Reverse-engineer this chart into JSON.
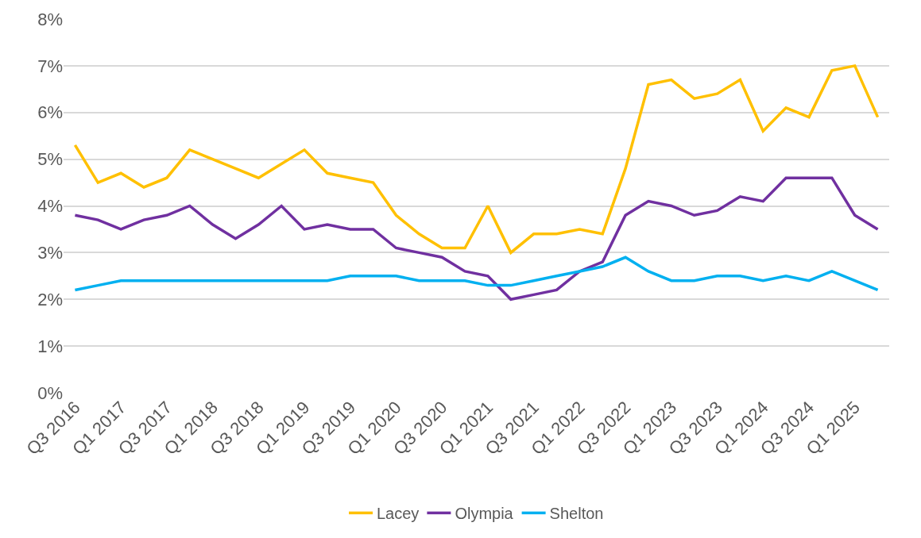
{
  "chart_data": {
    "type": "line",
    "categories": [
      "Q3 2016",
      null,
      "Q1 2017",
      null,
      "Q3 2017",
      null,
      "Q1 2018",
      null,
      "Q3 2018",
      null,
      "Q1 2019",
      null,
      "Q3 2019",
      null,
      "Q1 2020",
      null,
      "Q3 2020",
      null,
      "Q1 2021",
      null,
      "Q3 2021",
      null,
      "Q1 2022",
      null,
      "Q3 2022",
      null,
      "Q1 2023",
      null,
      "Q3 2023",
      null,
      "Q1 2024",
      null,
      "Q3 2024",
      null,
      "Q1 2025",
      null
    ],
    "series": [
      {
        "name": "Lacey",
        "color": "#ffc000",
        "values": [
          5.3,
          4.5,
          4.7,
          4.4,
          4.6,
          5.2,
          5.0,
          4.8,
          4.6,
          4.9,
          5.2,
          4.7,
          4.6,
          4.5,
          3.8,
          3.4,
          3.1,
          3.1,
          4.0,
          3.0,
          3.4,
          3.4,
          3.5,
          3.4,
          4.8,
          6.6,
          6.7,
          6.3,
          6.4,
          6.7,
          5.6,
          6.1,
          5.9,
          6.9,
          7.0,
          5.9
        ]
      },
      {
        "name": "Olympia",
        "color": "#7030a0",
        "values": [
          3.8,
          3.7,
          3.5,
          3.7,
          3.8,
          4.0,
          3.6,
          3.3,
          3.6,
          4.0,
          3.5,
          3.6,
          3.5,
          3.5,
          3.1,
          3.0,
          2.9,
          2.6,
          2.5,
          2.0,
          2.1,
          2.2,
          2.6,
          2.8,
          3.8,
          4.1,
          4.0,
          3.8,
          3.9,
          4.2,
          4.1,
          4.6,
          4.6,
          4.6,
          3.8,
          3.5
        ]
      },
      {
        "name": "Shelton",
        "color": "#00b0f0",
        "values": [
          2.2,
          2.3,
          2.4,
          2.4,
          2.4,
          2.4,
          2.4,
          2.4,
          2.4,
          2.4,
          2.4,
          2.4,
          2.5,
          2.5,
          2.5,
          2.4,
          2.4,
          2.4,
          2.3,
          2.3,
          2.4,
          2.5,
          2.6,
          2.7,
          2.9,
          2.6,
          2.4,
          2.4,
          2.5,
          2.5,
          2.4,
          2.5,
          2.4,
          2.6,
          2.4,
          2.2
        ]
      }
    ],
    "ylim": [
      0,
      8
    ],
    "yticks": [
      {
        "value": 0,
        "label": "0%"
      },
      {
        "value": 1,
        "label": "1%"
      },
      {
        "value": 2,
        "label": "2%"
      },
      {
        "value": 3,
        "label": "3%"
      },
      {
        "value": 4,
        "label": "4%"
      },
      {
        "value": 5,
        "label": "5%"
      },
      {
        "value": 6,
        "label": "6%"
      },
      {
        "value": 7,
        "label": "7%"
      },
      {
        "value": 8,
        "label": "8%"
      }
    ],
    "grid": "y",
    "legend": "bottom",
    "marker": "none",
    "line_style": "solid"
  }
}
